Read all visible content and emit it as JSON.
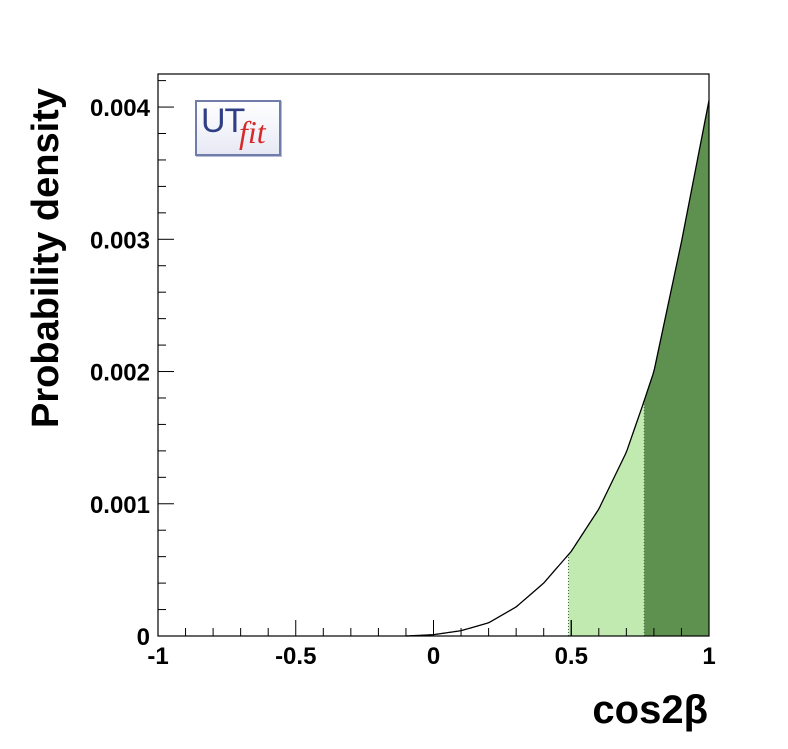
{
  "chart_data": {
    "type": "area",
    "xlabel": "cos2β",
    "ylabel": "Probability density",
    "xlim": [
      -1,
      1
    ],
    "ylim": [
      0,
      0.00425
    ],
    "x_ticks": [
      -1,
      -0.5,
      0,
      0.5,
      1
    ],
    "x_tick_labels": [
      "-1",
      "-0.5",
      "0",
      "0.5",
      "1"
    ],
    "y_ticks": [
      0,
      0.001,
      0.002,
      0.003,
      0.004
    ],
    "y_tick_labels": [
      "0",
      "0.001",
      "0.002",
      "0.003",
      "0.004"
    ],
    "series": [
      {
        "x": [
          -0.1,
          0.0,
          0.1,
          0.2,
          0.3,
          0.4,
          0.5,
          0.6,
          0.7,
          0.76,
          0.8,
          0.9,
          1.0
        ],
        "y": [
          0.0,
          1e-05,
          4e-05,
          0.0001,
          0.00022,
          0.0004,
          0.00064,
          0.00096,
          0.00139,
          0.00175,
          0.002,
          0.00298,
          0.00405
        ]
      }
    ],
    "bands": [
      {
        "from": 0.49,
        "to": 0.765,
        "color": "#c0eab0"
      },
      {
        "from": 0.765,
        "to": 1.0,
        "color": "#5e9150"
      }
    ],
    "marker_x": 0.5,
    "grid": false
  },
  "logo": {
    "ut": "UT",
    "fit": "fit"
  }
}
